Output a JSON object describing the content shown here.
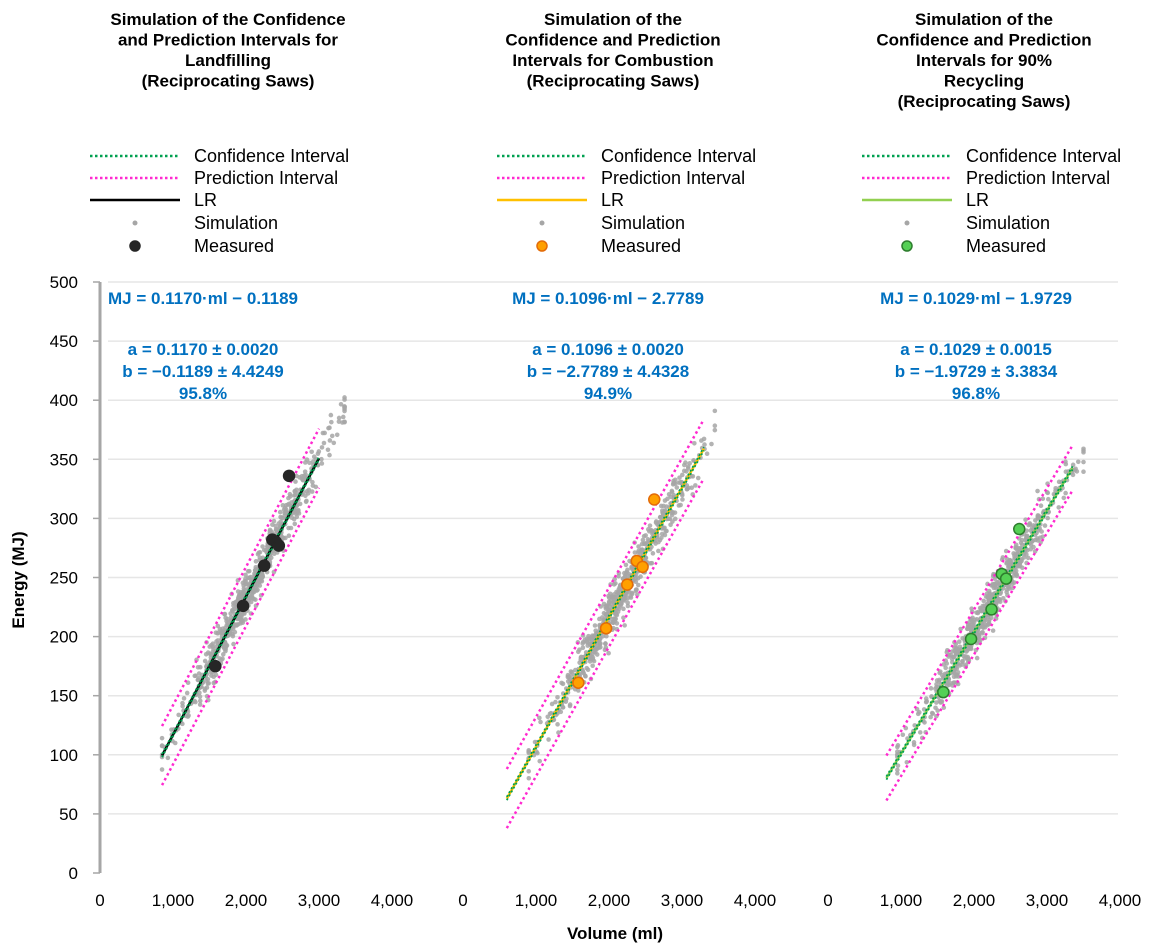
{
  "figure": {
    "ylabel": "Energy (MJ)",
    "xlabel": "Volume (ml)",
    "y_ticks": [
      "0",
      "50",
      "100",
      "150",
      "200",
      "250",
      "300",
      "350",
      "400",
      "450",
      "500"
    ],
    "x_ticks": [
      "0",
      "1,000",
      "2,000",
      "3,000",
      "4,000"
    ],
    "legend_labels": [
      "Confidence Interval",
      "Prediction Interval",
      "LR",
      "Simulation",
      "Measured"
    ],
    "colors": {
      "confidence": "#00a050",
      "prediction": "#ff2ad0",
      "simulation": "#a6a6a6",
      "annotation": "#0070c0",
      "grid": "#e6e6e6",
      "axis": "#a6a6a6"
    }
  },
  "chart_data": [
    {
      "type": "scatter",
      "title_lines": [
        "Simulation of the Confidence",
        "and Prediction Intervals for",
        "Landfilling",
        "(Reciprocating Saws)"
      ],
      "equation": "MJ = 0.1170·ml − 0.1189",
      "coef_a": "a = 0.1170 ± 0.0020",
      "coef_b": "b = −0.1189 ± 4.4249",
      "r2": "95.8%",
      "xlim": [
        0,
        4000
      ],
      "ylim": [
        0,
        500
      ],
      "lr_color": "#000000",
      "marker_fill": "#262626",
      "marker_edge": "#262626",
      "regression": {
        "slope": 0.117,
        "intercept": -0.1189,
        "x_range": [
          850,
          3000
        ]
      },
      "prediction_band": {
        "half_width": 25,
        "x_range": [
          850,
          3000
        ]
      },
      "simulation_cloud": {
        "x_range": [
          1000,
          3200
        ],
        "n": 650
      },
      "measured": {
        "x": [
          1580,
          1960,
          2250,
          2360,
          2410,
          2450,
          2590
        ],
        "y": [
          175,
          226,
          260,
          282,
          280,
          277,
          336
        ]
      }
    },
    {
      "type": "scatter",
      "title_lines": [
        "Simulation of the",
        "Confidence and Prediction",
        "Intervals for Combustion",
        "(Reciprocating Saws)"
      ],
      "equation": "MJ = 0.1096·ml − 2.7789",
      "coef_a": "a = 0.1096 ± 0.0020",
      "coef_b": "b = −2.7789 ± 4.4328",
      "r2": "94.9%",
      "xlim": [
        0,
        4000
      ],
      "ylim": [
        0,
        500
      ],
      "lr_color": "#ffc000",
      "marker_fill": "#ffa000",
      "marker_edge": "#e36c09",
      "regression": {
        "slope": 0.1096,
        "intercept": -2.7789,
        "x_range": [
          600,
          3300
        ]
      },
      "prediction_band": {
        "half_width": 25,
        "x_range": [
          600,
          3300
        ]
      },
      "simulation_cloud": {
        "x_range": [
          1050,
          3300
        ],
        "n": 650
      },
      "measured": {
        "x": [
          1580,
          1960,
          2250,
          2380,
          2460,
          2620
        ],
        "y": [
          161,
          207,
          244,
          264,
          259,
          316
        ]
      }
    },
    {
      "type": "scatter",
      "title_lines": [
        "Simulation of the",
        "Confidence and Prediction",
        "Intervals for 90%",
        "Recycling",
        "(Reciprocating Saws)"
      ],
      "equation": "MJ = 0.1029·ml − 1.9729",
      "coef_a": "a = 0.1029 ± 0.0015",
      "coef_b": "b = −1.9729 ± 3.3834",
      "r2": "96.8%",
      "xlim": [
        0,
        4000
      ],
      "ylim": [
        0,
        500
      ],
      "lr_color": "#92d050",
      "marker_fill": "#55d055",
      "marker_edge": "#2e7d2e",
      "regression": {
        "slope": 0.1029,
        "intercept": -1.9729,
        "x_range": [
          800,
          3350
        ]
      },
      "prediction_band": {
        "half_width": 19,
        "x_range": [
          800,
          3350
        ]
      },
      "simulation_cloud": {
        "x_range": [
          1100,
          3350
        ],
        "n": 650
      },
      "measured": {
        "x": [
          1580,
          1960,
          2240,
          2380,
          2440,
          2620
        ],
        "y": [
          153,
          198,
          223,
          253,
          249,
          291
        ]
      }
    }
  ]
}
